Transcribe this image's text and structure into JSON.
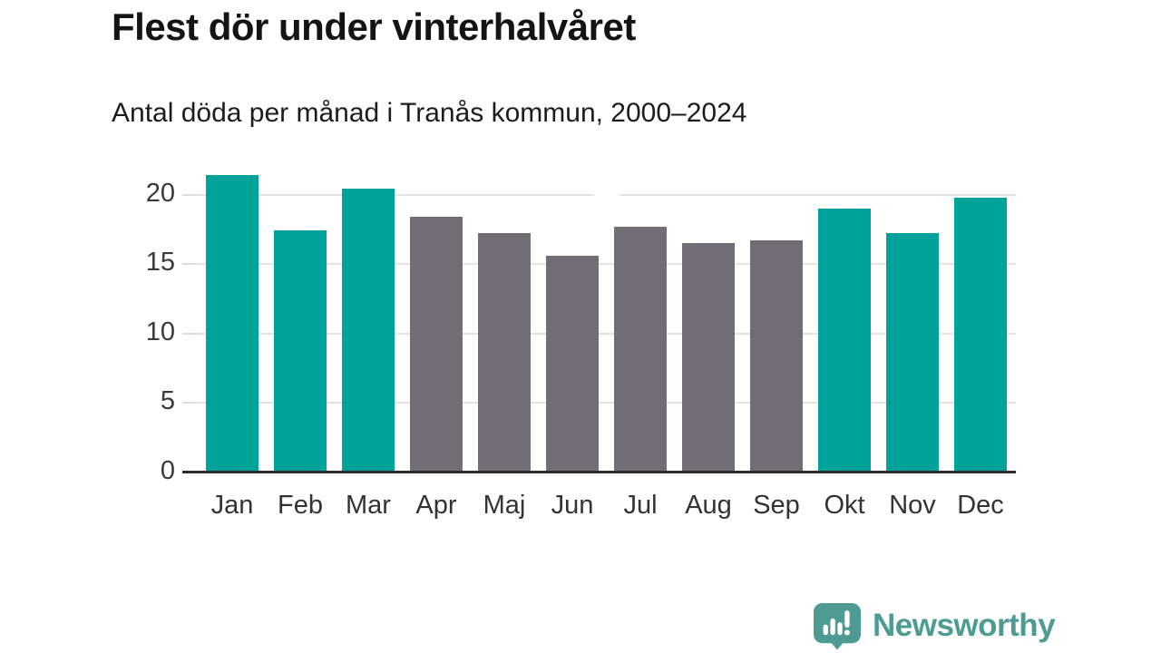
{
  "header": {
    "title": "Flest dör under vinterhalvåret",
    "subtitle": "Antal döda per månad i Tranås kommun, 2000–2024"
  },
  "chart_data": {
    "type": "bar",
    "title": "Flest dör under vinterhalvåret",
    "subtitle": "Antal döda per månad i Tranås kommun, 2000–2024",
    "categories": [
      "Jan",
      "Feb",
      "Mar",
      "Apr",
      "Maj",
      "Jun",
      "Jul",
      "Aug",
      "Sep",
      "Okt",
      "Nov",
      "Dec"
    ],
    "values": [
      21.4,
      17.4,
      20.4,
      18.4,
      17.2,
      15.6,
      17.7,
      16.5,
      16.7,
      19.0,
      17.2,
      19.8
    ],
    "bar_roles": [
      "highlight",
      "highlight",
      "highlight",
      "muted",
      "muted",
      "muted",
      "muted",
      "muted",
      "muted",
      "highlight",
      "highlight",
      "highlight"
    ],
    "xlabel": "",
    "ylabel": "",
    "ylim": [
      0,
      21.6
    ],
    "yticks": [
      0,
      5,
      10,
      15,
      20
    ],
    "grid": true,
    "legend": "none",
    "colors": {
      "highlight": "#00A39A",
      "muted": "#716E77"
    }
  },
  "footer": {
    "brand": "Newsworthy",
    "brand_color": "#4E9B94",
    "logo_icon": "newsworthy-speech-bubble-chart-icon"
  }
}
